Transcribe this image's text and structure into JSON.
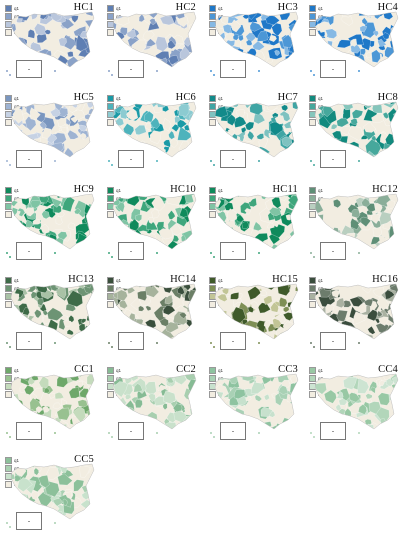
{
  "legend_labels": [
    "q1",
    "q2",
    "q3",
    "q4"
  ],
  "panels": [
    {
      "title": "HC1",
      "palette": [
        "#5f7fb3",
        "#8aa2c8",
        "#b9c6dc",
        "#f2ede1"
      ]
    },
    {
      "title": "HC2",
      "palette": [
        "#5f7fb3",
        "#8aa2c8",
        "#b9c6dc",
        "#f2ede1"
      ]
    },
    {
      "title": "HC3",
      "palette": [
        "#1f78c8",
        "#4c97d6",
        "#86b9e4",
        "#f2ede1"
      ]
    },
    {
      "title": "HC4",
      "palette": [
        "#1f78c8",
        "#4c97d6",
        "#86b9e4",
        "#f2ede1"
      ]
    },
    {
      "title": "HC5",
      "palette": [
        "#7a96bf",
        "#9eb3d2",
        "#c6d2e4",
        "#f2ede1"
      ]
    },
    {
      "title": "HC6",
      "palette": [
        "#1a9aa6",
        "#4eb3bc",
        "#8ccbd1",
        "#f2ede1"
      ]
    },
    {
      "title": "HC7",
      "palette": [
        "#128a8a",
        "#3fa5a4",
        "#7ec2c0",
        "#f2ede1"
      ]
    },
    {
      "title": "HC8",
      "palette": [
        "#128a7e",
        "#46a89c",
        "#85c6bc",
        "#f2ede1"
      ]
    },
    {
      "title": "HC9",
      "palette": [
        "#0f8a5c",
        "#3fa67c",
        "#7fc4a4",
        "#f2ede1"
      ]
    },
    {
      "title": "HC10",
      "palette": [
        "#0f8a5c",
        "#3fa67c",
        "#7fc4a4",
        "#f2ede1"
      ]
    },
    {
      "title": "HC11",
      "palette": [
        "#0f8a5c",
        "#3fa67c",
        "#7fc4a4",
        "#f2ede1"
      ]
    },
    {
      "title": "HC12",
      "palette": [
        "#5f8f77",
        "#8aae99",
        "#b9cfc0",
        "#f2ede1"
      ]
    },
    {
      "title": "HC13",
      "palette": [
        "#3e6b48",
        "#6d9474",
        "#a9c2a6",
        "#f2ede1"
      ]
    },
    {
      "title": "HC14",
      "palette": [
        "#3a4f3c",
        "#6b7f66",
        "#a6b39c",
        "#f2ede1"
      ]
    },
    {
      "title": "HC15",
      "palette": [
        "#3f5a2a",
        "#7e8f55",
        "#c2c596",
        "#f2ede1"
      ]
    },
    {
      "title": "HC16",
      "palette": [
        "#3a4d3d",
        "#6c7c6c",
        "#a9b1a1",
        "#f2ede1"
      ]
    },
    {
      "title": "CC1",
      "palette": [
        "#6ea86a",
        "#98c190",
        "#c4dbbc",
        "#f2ede1"
      ]
    },
    {
      "title": "CC2",
      "palette": [
        "#86bb94",
        "#a8cfaf",
        "#c9e1cb",
        "#f2ede1"
      ]
    },
    {
      "title": "CC3",
      "palette": [
        "#8ec3a0",
        "#a9d1b5",
        "#c7e1cd",
        "#f2ede1"
      ]
    },
    {
      "title": "CC4",
      "palette": [
        "#98c8a4",
        "#b2d6ba",
        "#cde4d2",
        "#f2ede1"
      ]
    },
    {
      "title": "CC5",
      "palette": [
        "#8cc09a",
        "#a9d0b1",
        "#c8e2cc",
        "#f2ede1"
      ]
    }
  ]
}
